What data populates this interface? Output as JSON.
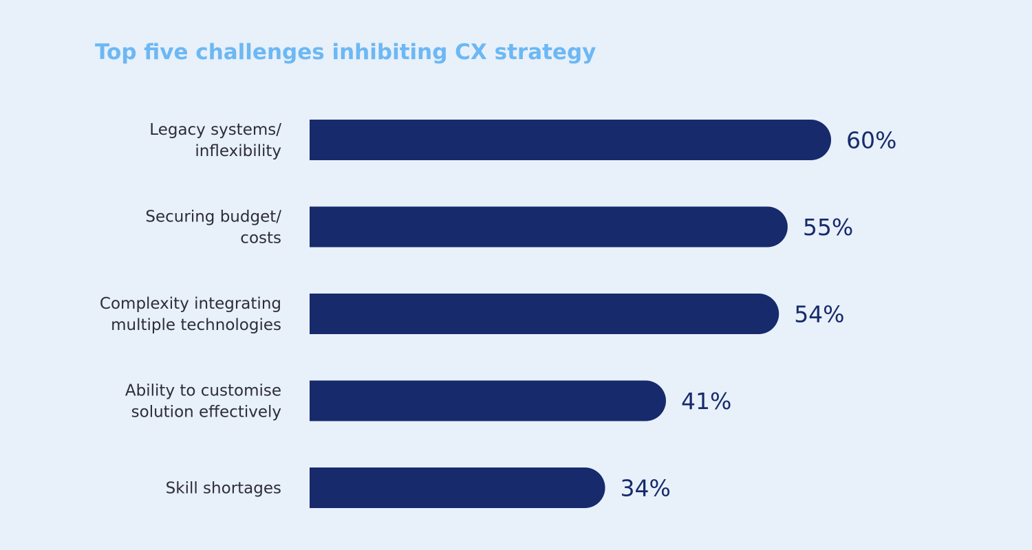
{
  "colors": {
    "background": "#e8f0fa",
    "title": "#6cb8f4",
    "bar": "#162a6c",
    "value_label": "#172a6b",
    "category_label": "#2d2d3a"
  },
  "chart_data": {
    "type": "bar",
    "orientation": "horizontal",
    "title": "Top five challenges inhibiting CX strategy",
    "xlabel": "",
    "ylabel": "",
    "xlim": [
      0,
      60
    ],
    "grid": false,
    "categories": [
      [
        "Legacy systems/",
        "inflexibility"
      ],
      [
        "Securing budget/",
        "costs"
      ],
      [
        "Complexity integrating",
        "multiple technologies"
      ],
      [
        "Ability to customise",
        "solution effectively"
      ],
      [
        "Skill shortages"
      ]
    ],
    "values": [
      60,
      55,
      54,
      41,
      34
    ],
    "value_labels": [
      "60%",
      "55%",
      "54%",
      "41%",
      "34%"
    ]
  }
}
